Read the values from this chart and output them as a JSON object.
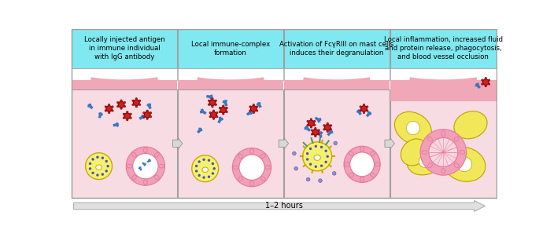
{
  "panel_titles": [
    "Locally injected antigen\nin immune individual\nwith IgG antibody",
    "Local immune-complex\nformation",
    "Activation of FcγRIII on mast cells\ninduces their degranulation",
    "Local inflammation, increased fluid\nand protein release, phagocytosis,\nand blood vessel occlusion"
  ],
  "header_color": "#80e8f0",
  "body_bg": "#f8dce4",
  "white_strip": "#ffffff",
  "skin_strip": "#f0a8b8",
  "vessel_pink": "#f0a0b8",
  "vessel_wall": "#e87898",
  "vessel_inner": "#ffffff",
  "vessel_oval": "#f8c0d0",
  "mast_yellow": "#f4f070",
  "mast_border": "#c8a800",
  "mast_dot": "#5050b8",
  "antigen_red": "#cc2020",
  "antigen_border": "#880000",
  "antibody_blue": "#3878c0",
  "panel_border": "#a0a0a0",
  "arrow_fill": "#d8d8d8",
  "arrow_border": "#909090",
  "timeline_fill": "#e0e0e0",
  "timeline_border": "#b0b0b0",
  "timeline_text": "1–2 hours",
  "fig_bg": "#ffffff",
  "granule_fill": "#9090d0",
  "granule_border": "#5050a0",
  "macro_yellow": "#f0e858",
  "macro_border": "#c0a000"
}
